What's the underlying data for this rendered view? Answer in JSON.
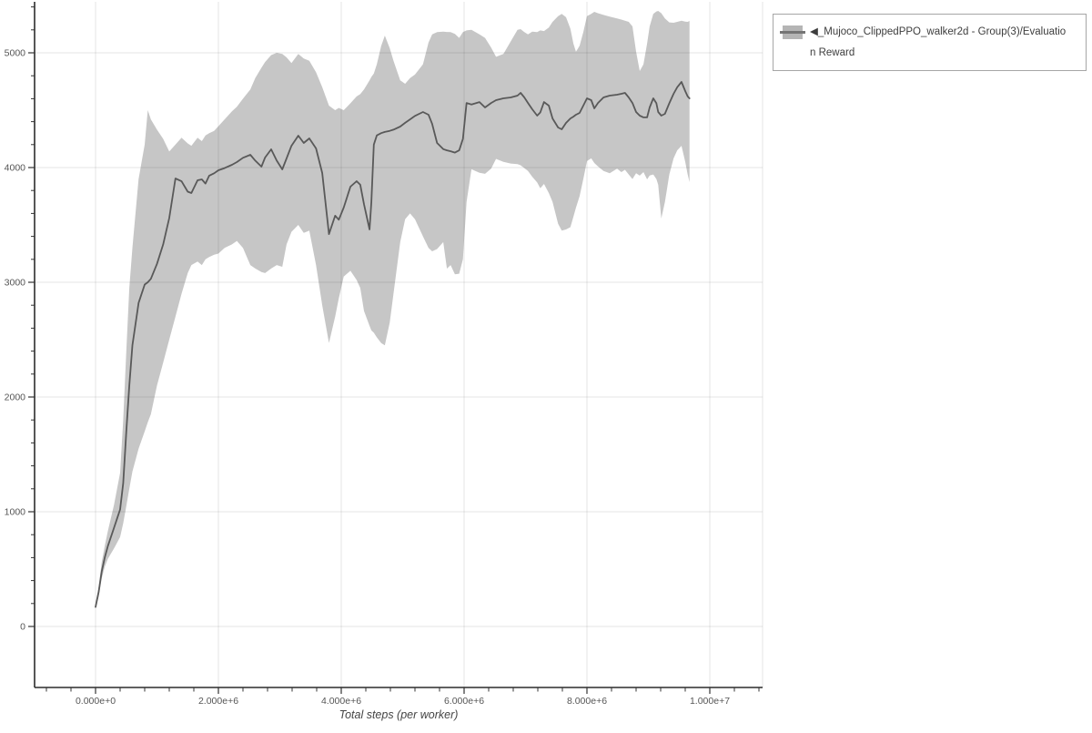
{
  "legend": {
    "line1": "◀_Mujoco_ClippedPPO_walker2d - Group(3)/Evaluatio",
    "line2": "n Reward",
    "full_label": "◀_Mujoco_ClippedPPO_walker2d - Group(3)/Evaluation Reward"
  },
  "colors": {
    "band": "#c6c6c6",
    "mean_line": "#595959",
    "grid": "rgba(0,0,0,0.10)",
    "spine": "#2b2b2b",
    "tick": "#333333",
    "tick_label": "#555555",
    "axis_title": "#444444",
    "legend_border": "#a6a6a6",
    "legend_text": "#3d3d3d",
    "background": "#ffffff"
  },
  "chart_data": {
    "type": "line",
    "title": "",
    "xlabel": "Total steps (per worker)",
    "ylabel": "",
    "grid": true,
    "legend_position": "outside-top-right",
    "xlim_millions": [
      -0.99,
      10.86
    ],
    "ylim": [
      -530,
      5460
    ],
    "x_ticks": [
      {
        "value_millions": 0,
        "label": "0.000e+0"
      },
      {
        "value_millions": 2,
        "label": "2.000e+6"
      },
      {
        "value_millions": 4,
        "label": "4.000e+6"
      },
      {
        "value_millions": 6,
        "label": "6.000e+6"
      },
      {
        "value_millions": 8,
        "label": "8.000e+6"
      },
      {
        "value_millions": 10,
        "label": "1.000e+7"
      }
    ],
    "x_minor_step_millions": 0.4,
    "y_ticks": [
      {
        "value": 0,
        "label": "0"
      },
      {
        "value": 1000,
        "label": "1000"
      },
      {
        "value": 2000,
        "label": "2000"
      },
      {
        "value": 3000,
        "label": "3000"
      },
      {
        "value": 4000,
        "label": "4000"
      },
      {
        "value": 5000,
        "label": "5000"
      }
    ],
    "y_minor_step": 200,
    "y_minor_max": 5400,
    "series": [
      {
        "name": "◀_Mujoco_ClippedPPO_walker2d - Group(3)/Evaluation Reward",
        "kind": "mean-with-band",
        "x_unit": "steps (millions)",
        "points_format": [
          "x_millions",
          "band_low",
          "mean",
          "band_high"
        ],
        "points": [
          [
            0.0,
            160,
            170,
            185
          ],
          [
            0.05,
            260,
            300,
            345
          ],
          [
            0.1,
            420,
            480,
            560
          ],
          [
            0.15,
            520,
            600,
            700
          ],
          [
            0.2,
            590,
            700,
            830
          ],
          [
            0.3,
            680,
            860,
            1060
          ],
          [
            0.4,
            780,
            1020,
            1340
          ],
          [
            0.45,
            900,
            1250,
            1800
          ],
          [
            0.5,
            1050,
            1700,
            2400
          ],
          [
            0.55,
            1200,
            2100,
            2950
          ],
          [
            0.6,
            1350,
            2450,
            3300
          ],
          [
            0.7,
            1550,
            2820,
            3900
          ],
          [
            0.8,
            1700,
            2980,
            4200
          ],
          [
            0.85,
            1780,
            3000,
            4500
          ],
          [
            0.9,
            1850,
            3030,
            4420
          ],
          [
            1.0,
            2100,
            3160,
            4330
          ],
          [
            1.1,
            2300,
            3330,
            4250
          ],
          [
            1.2,
            2500,
            3560,
            4140
          ],
          [
            1.3,
            2700,
            3905,
            4200
          ],
          [
            1.4,
            2900,
            3880,
            4260
          ],
          [
            1.5,
            3080,
            3790,
            4210
          ],
          [
            1.56,
            3150,
            3778,
            4190
          ],
          [
            1.66,
            3180,
            3889,
            4260
          ],
          [
            1.73,
            3150,
            3897,
            4230
          ],
          [
            1.79,
            3200,
            3860,
            4280
          ],
          [
            1.85,
            3220,
            3929,
            4300
          ],
          [
            1.93,
            3240,
            3950,
            4320
          ],
          [
            2.0,
            3250,
            3976,
            4360
          ],
          [
            2.1,
            3300,
            3995,
            4420
          ],
          [
            2.22,
            3330,
            4024,
            4490
          ],
          [
            2.3,
            3360,
            4048,
            4530
          ],
          [
            2.4,
            3300,
            4085,
            4600
          ],
          [
            2.52,
            3150,
            4111,
            4680
          ],
          [
            2.6,
            3120,
            4060,
            4780
          ],
          [
            2.7,
            3090,
            4008,
            4870
          ],
          [
            2.76,
            3080,
            4087,
            4920
          ],
          [
            2.86,
            3120,
            4159,
            4980
          ],
          [
            2.95,
            3150,
            4060,
            5000
          ],
          [
            3.04,
            3135,
            3984,
            4990
          ],
          [
            3.11,
            3330,
            4079,
            4960
          ],
          [
            3.19,
            3440,
            4190,
            4910
          ],
          [
            3.3,
            3500,
            4278,
            4990
          ],
          [
            3.39,
            3430,
            4214,
            4950
          ],
          [
            3.48,
            3450,
            4254,
            4930
          ],
          [
            3.59,
            3150,
            4167,
            4830
          ],
          [
            3.69,
            2800,
            3952,
            4700
          ],
          [
            3.8,
            2470,
            3420,
            4540
          ],
          [
            3.9,
            2700,
            3580,
            4500
          ],
          [
            3.96,
            2860,
            3545,
            4520
          ],
          [
            4.04,
            3050,
            3651,
            4500
          ],
          [
            4.15,
            3100,
            3833,
            4560
          ],
          [
            4.25,
            3020,
            3881,
            4620
          ],
          [
            4.31,
            2950,
            3850,
            4640
          ],
          [
            4.37,
            2750,
            3680,
            4680
          ],
          [
            4.46,
            2620,
            3460,
            4760
          ],
          [
            4.49,
            2580,
            3700,
            4790
          ],
          [
            4.53,
            2560,
            4200,
            4820
          ],
          [
            4.58,
            2520,
            4280,
            4900
          ],
          [
            4.65,
            2470,
            4300,
            5060
          ],
          [
            4.71,
            2450,
            4310,
            5150
          ],
          [
            4.79,
            2650,
            4320,
            5040
          ],
          [
            4.85,
            2900,
            4330,
            4930
          ],
          [
            4.96,
            3350,
            4357,
            4760
          ],
          [
            5.04,
            3550,
            4390,
            4730
          ],
          [
            5.12,
            3600,
            4420,
            4780
          ],
          [
            5.2,
            3550,
            4450,
            4810
          ],
          [
            5.33,
            3400,
            4484,
            4900
          ],
          [
            5.42,
            3300,
            4460,
            5090
          ],
          [
            5.48,
            3270,
            4380,
            5160
          ],
          [
            5.56,
            3290,
            4214,
            5180
          ],
          [
            5.66,
            3350,
            4160,
            5185
          ],
          [
            5.72,
            3119,
            4150,
            5182
          ],
          [
            5.78,
            3150,
            4142,
            5180
          ],
          [
            5.85,
            3070,
            4130,
            5165
          ],
          [
            5.92,
            3075,
            4150,
            5130
          ],
          [
            5.98,
            3200,
            4250,
            5180
          ],
          [
            6.04,
            3700,
            4563,
            5195
          ],
          [
            6.12,
            3985,
            4550,
            5200
          ],
          [
            6.25,
            3955,
            4571,
            5160
          ],
          [
            6.34,
            3945,
            4524,
            5130
          ],
          [
            6.44,
            3990,
            4563,
            5045
          ],
          [
            6.52,
            4075,
            4587,
            4965
          ],
          [
            6.64,
            4050,
            4603,
            4990
          ],
          [
            6.76,
            4035,
            4611,
            5100
          ],
          [
            6.87,
            4030,
            4627,
            5200
          ],
          [
            6.92,
            4020,
            4651,
            5206
          ],
          [
            6.98,
            3995,
            4611,
            5180
          ],
          [
            7.04,
            3970,
            4563,
            5160
          ],
          [
            7.11,
            3920,
            4508,
            5185
          ],
          [
            7.19,
            3870,
            4452,
            5180
          ],
          [
            7.24,
            3820,
            4480,
            5195
          ],
          [
            7.3,
            3857,
            4571,
            5190
          ],
          [
            7.38,
            3778,
            4540,
            5220
          ],
          [
            7.44,
            3700,
            4428,
            5270
          ],
          [
            7.53,
            3510,
            4349,
            5320
          ],
          [
            7.59,
            3450,
            4333,
            5340
          ],
          [
            7.66,
            3460,
            4389,
            5310
          ],
          [
            7.73,
            3480,
            4428,
            5210
          ],
          [
            7.78,
            3571,
            4444,
            5080
          ],
          [
            7.82,
            3650,
            4460,
            5010
          ],
          [
            7.88,
            3750,
            4476,
            5060
          ],
          [
            7.94,
            3900,
            4540,
            5180
          ],
          [
            8.0,
            4056,
            4603,
            5320
          ],
          [
            8.07,
            4080,
            4587,
            5340
          ],
          [
            8.12,
            4040,
            4516,
            5357
          ],
          [
            8.18,
            4010,
            4563,
            5345
          ],
          [
            8.27,
            3970,
            4611,
            5330
          ],
          [
            8.37,
            3950,
            4627,
            5315
          ],
          [
            8.49,
            3990,
            4635,
            5300
          ],
          [
            8.56,
            3960,
            4643,
            5290
          ],
          [
            8.62,
            3980,
            4651,
            5280
          ],
          [
            8.68,
            3940,
            4611,
            5270
          ],
          [
            8.74,
            3900,
            4563,
            5230
          ],
          [
            8.8,
            3950,
            4484,
            5010
          ],
          [
            8.86,
            3929,
            4452,
            4841
          ],
          [
            8.92,
            3960,
            4437,
            4900
          ],
          [
            8.98,
            3897,
            4437,
            5080
          ],
          [
            9.02,
            3930,
            4524,
            5230
          ],
          [
            9.08,
            3940,
            4603,
            5340
          ],
          [
            9.13,
            3900,
            4560,
            5360
          ],
          [
            9.16,
            3850,
            4484,
            5365
          ],
          [
            9.21,
            3556,
            4452,
            5345
          ],
          [
            9.27,
            3700,
            4468,
            5300
          ],
          [
            9.34,
            3940,
            4560,
            5265
          ],
          [
            9.41,
            4080,
            4643,
            5262
          ],
          [
            9.47,
            4150,
            4700,
            5270
          ],
          [
            9.54,
            4190,
            4746,
            5280
          ],
          [
            9.6,
            4050,
            4667,
            5272
          ],
          [
            9.64,
            3940,
            4620,
            5270
          ],
          [
            9.67,
            3873,
            4603,
            5278
          ]
        ]
      }
    ]
  }
}
